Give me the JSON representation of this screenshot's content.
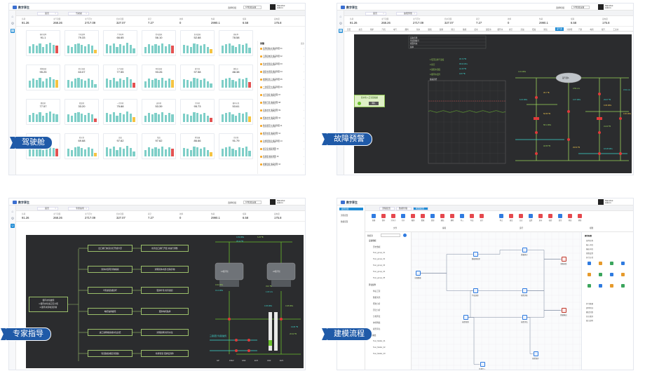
{
  "app": {
    "name": "数字孪生",
    "brand_color": "#1f8bd4",
    "badge_color": "#1f5aa8"
  },
  "header": {
    "selector_label": "选择机组",
    "selector_value": "1#机组设备",
    "user_name": "Manchol",
    "user_role": "Admin"
  },
  "panels": {
    "cockpit": {
      "badge": "驾驶舱",
      "tabs": [
        "首页",
        "驾驶舱"
      ],
      "metrics": [
        {
          "label": "负荷",
          "value": "91.26"
        },
        {
          "label": "主汽流量",
          "value": "268.26"
        },
        {
          "label": "主汽压力",
          "value": "2717.09"
        },
        {
          "label": "给水流量",
          "value": "327.07"
        },
        {
          "label": "真空",
          "value": "7.27"
        },
        {
          "label": "效率",
          "value": "0"
        },
        {
          "label": "热耗",
          "value": "2990.1"
        },
        {
          "label": "煤耗",
          "value": "6.58"
        },
        {
          "label": "发电量",
          "value": "175.8"
        }
      ],
      "cards": [
        {
          "title": "锅炉效率",
          "value": "91.1"
        },
        {
          "title": "汽机效率",
          "value": "79.33"
        },
        {
          "title": "厂用电率",
          "value": "66.65"
        },
        {
          "title": "供电煤耗",
          "value": "56.10"
        },
        {
          "title": "发电煤耗",
          "value": "52.88"
        },
        {
          "title": "热耗率",
          "value": "78.58"
        },
        {
          "title": "排烟温度",
          "value": "95.25"
        },
        {
          "title": "给水温度",
          "value": "63.07"
        },
        {
          "title": "主汽温度",
          "value": "77.55"
        },
        {
          "title": "再热温度",
          "value": "93.26"
        },
        {
          "title": "真空度",
          "value": "97.58"
        },
        {
          "title": "凝结水",
          "value": "88.38"
        },
        {
          "title": "磨煤机",
          "value": "77.57"
        },
        {
          "title": "给煤机",
          "value": "33.20"
        },
        {
          "title": "一次风机",
          "value": "75.88"
        },
        {
          "title": "送风机",
          "value": "53.39"
        },
        {
          "title": "引风机",
          "value": "95.73"
        },
        {
          "title": "循环水泵",
          "value": "53.61"
        },
        {
          "title": "凝结水泵",
          "value": "55.05"
        },
        {
          "title": "给水泵",
          "value": "69.68"
        },
        {
          "title": "高加",
          "value": "97.62"
        },
        {
          "title": "低加",
          "value": "97.62"
        },
        {
          "title": "除氧器",
          "value": "86.66"
        },
        {
          "title": "冷却塔",
          "value": "91.79"
        }
      ],
      "feed": {
        "title": "预警",
        "more": "更多",
        "items": [
          {
            "text": "送风机振动 偏差预警 01",
            "time": "2023-04-12 10:11"
          },
          {
            "text": "引风机电流 偏差预警 02",
            "time": "2023-04-12 10:08"
          },
          {
            "text": "给水泵温度 偏差预警 03",
            "time": "2023-04-12 09:57"
          },
          {
            "text": "凝结水流量 偏差预警 04",
            "time": "2023-04-12 09:41"
          },
          {
            "text": "磨煤机出口 偏差预警 05",
            "time": "2023-04-12 09:33"
          },
          {
            "text": "一次风压力 偏差预警 06",
            "time": "2023-04-12 09:20"
          },
          {
            "text": "主汽温度 偏差预警 07",
            "time": "2023-04-12 09:12"
          },
          {
            "text": "再热汽温 偏差预警 08",
            "time": "2023-04-12 09:02"
          },
          {
            "text": "高加水位 偏差预警 09",
            "time": "2023-04-12 08:54"
          },
          {
            "text": "低加水位 偏差预警 10",
            "time": "2023-04-12 08:47"
          },
          {
            "text": "除氧器压力 偏差预警 11",
            "time": "2023-04-12 08:33"
          },
          {
            "text": "循环水温 偏差预警 12",
            "time": "2023-04-12 08:21"
          },
          {
            "text": "冷却塔温度 偏差预警 13",
            "time": "2023-04-12 08:10"
          },
          {
            "text": "真空度 偏差预警 14",
            "time": "2023-04-12 07:59"
          },
          {
            "text": "给煤量 偏差预警 15",
            "time": "2023-04-12 07:43"
          },
          {
            "text": "排烟温度 偏差预警 16",
            "time": "2023-04-12 07:30"
          }
        ]
      },
      "bar_heights": [
        [
          0.55,
          0.75,
          0.6,
          0.8,
          0.5,
          0.7,
          0.85,
          0.65,
          0.6
        ],
        [
          0.6,
          0.5,
          0.7,
          0.8,
          0.65,
          0.55,
          0.75,
          0.6,
          0.3
        ],
        [
          0.7,
          0.6,
          0.8,
          0.5,
          0.7,
          0.6,
          0.85,
          0.65,
          0.4
        ],
        [
          0.5,
          0.7,
          0.6,
          0.75,
          0.6,
          0.8,
          0.55,
          0.7,
          0.6
        ],
        [
          0.65,
          0.6,
          0.5,
          0.8,
          0.7,
          0.6,
          0.75,
          0.5,
          0.35
        ],
        [
          0.6,
          0.7,
          0.8,
          0.6,
          0.5,
          0.7,
          0.65,
          0.8,
          0.45
        ]
      ]
    },
    "fault": {
      "badge": "故障预警",
      "tabs": [
        "首页",
        "故障预警"
      ],
      "subtabs": [
        "首页",
        "总览",
        "锅炉",
        "汽机",
        "电气",
        "燃料",
        "化水",
        "脱硫",
        "脱硝",
        "除尘",
        "输煤",
        "给水",
        "凝结水",
        "循环水",
        "真空",
        "高加",
        "低加",
        "除氧",
        "凝汽器",
        "冷却塔",
        "汽泵",
        "电泵",
        "辅汽",
        "工业水"
      ],
      "active_subtab": "凝汽器",
      "info": [
        "设备名称",
        "传感器编号",
        "报警状态",
        "频率"
      ],
      "alarm": {
        "title": "给水泵入口流量偏差",
        "button": "确认"
      },
      "chart_label": "偏差趋势",
      "readouts": [
        {
          "label": "1.低压缸排汽温度",
          "value": "45.73 ℃"
        },
        {
          "label": "2.真空",
          "value": "96.02 kPa"
        },
        {
          "label": "3.凝结水温度",
          "value": "44.15 ℃"
        },
        {
          "label": "4.循环水温升",
          "value": "9.87 ℃"
        }
      ],
      "diagram": {
        "tank": "凝汽器A",
        "labels": [
          "4.01 MPa",
          "6.15 MPa",
          "35.7 ℃",
          "0.59 m/s",
          "0.07 MPa",
          "50.55 ℃",
          "58.1 MPa",
          "29.07 ℃",
          "0.36 MPa",
          "31.00 ℃",
          "0.54 m/s",
          "0.30 MPa",
          "40.55 ℃",
          "18.48 MPa",
          "29.54 ℃"
        ]
      }
    },
    "expert": {
      "badge": "专家指导",
      "tabs": [
        "首页",
        "专家指导"
      ],
      "root": {
        "title": "循环水泵故障",
        "lines": [
          "1.循环水泵出口压力低",
          "2.循环水泵电流异常"
        ]
      },
      "causes": [
        "出口阀门未完全打开或卡涩",
        "泵体内部有异物堵塞",
        "叶轮磨损或损坏",
        "电机轴承故障",
        "进口滤网堵塞或水位过低",
        "管道破裂或密封泄漏"
      ],
      "advice": [
        "检查出口阀门开度 并进行调整",
        "清理泵体内部 去除异物",
        "更换叶轮 检查磨损",
        "更换电机轴承",
        "清理滤网 检查水位",
        "检修管道 更换密封件"
      ],
      "diagram": {
        "pumps": [
          "1#循环泵",
          "2#循环泵"
        ],
        "labels": [
          "0.39 MPa",
          "6.25 ℃",
          "35.22 ℃",
          "0.02 MPa",
          "0.14 MPa",
          "33.6 ℃",
          "1.18 m/s",
          "三级报警 传感器故障",
          "0.45 MPa",
          "0.38 MPa",
          "31.81 ℃",
          "26.34 ℃"
        ],
        "bottom": [
          "GP",
          "15/kV",
          "GN3",
          "EV3",
          "GN2",
          "EV3"
        ]
      }
    },
    "modeling": {
      "badge": "建模流程",
      "sidebar": [
        "模型管理",
        "流程配置",
        "数据配置"
      ],
      "tabs": [
        "流程配置",
        "数据管理",
        "模型配置"
      ],
      "toolbar": [
        "新建",
        "保存",
        "另存为",
        "打开",
        "撤销",
        "重做",
        "复制",
        "粘贴",
        "删除",
        "导入",
        "导出",
        "运行",
        "停止",
        "调试",
        "日志",
        "设置",
        "发布",
        "校验",
        "清空",
        "预览",
        "帮助"
      ],
      "toolbar_groups": [
        "文件",
        "编辑",
        "运行",
        "视图"
      ],
      "tree_title": "数据源",
      "tree": [
        "设备数据",
        "历史数据",
        "Test_group_01",
        "Test_group_02",
        "Test_group_03",
        "Test_group_04",
        "Test_group_05",
        "算法组件",
        "特征工程",
        "数据清洗",
        "聚类分析",
        "回归分析",
        "分类算法",
        "神经网络",
        "模型评估",
        "模型输出",
        "Test_Model_01",
        "Test_Model_02",
        "Test_Model_03"
      ],
      "nodes": [
        {
          "label": "读取数据"
        },
        {
          "label": "数据预处理"
        },
        {
          "label": "特征选择"
        },
        {
          "label": "数据拆分"
        },
        {
          "label": "模型训练"
        },
        {
          "label": "模型预测"
        },
        {
          "label": "模型评估"
        },
        {
          "label": "参数调优"
        },
        {
          "label": "数据输出"
        },
        {
          "label": "结果写入"
        },
        {
          "label": "模型保存"
        }
      ],
      "props_title": "属性配置",
      "props": [
        "组件名称",
        "输入字段",
        "输出字段",
        "参数设置",
        "执行方式",
        "并行数量",
        "超时时间",
        "重试次数",
        "日志级别",
        "备注说明"
      ]
    }
  }
}
